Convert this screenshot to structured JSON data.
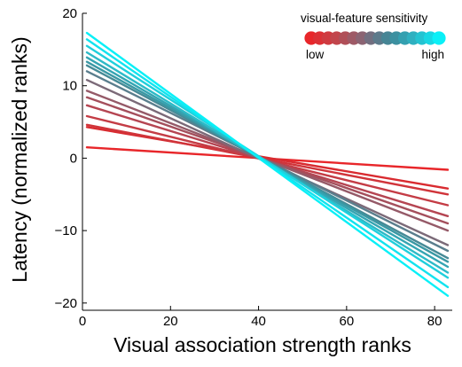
{
  "chart_data": {
    "type": "line",
    "xlabel": "Visual association strength ranks",
    "ylabel": "Latency (normalized ranks)",
    "xlim": [
      0,
      84
    ],
    "ylim": [
      -21,
      20
    ],
    "xticks": [
      0,
      20,
      40,
      60,
      80
    ],
    "yticks": [
      -20,
      -10,
      0,
      10,
      20
    ],
    "x_tick_labels": [
      "0",
      "20",
      "40",
      "60",
      "80"
    ],
    "y_tick_labels": [
      "−20",
      "−10",
      "0",
      "10",
      "20"
    ],
    "grid": false,
    "legend": {
      "title": "visual-feature sensitivity",
      "low_label": "low",
      "high_label": "high",
      "placement": "top-right",
      "swatch_colors": [
        "#e8262a",
        "#dc3035",
        "#cf3a40",
        "#c2454c",
        "#b04f58",
        "#9e5a66",
        "#8b6473",
        "#726f80",
        "#5c7a8b",
        "#468595",
        "#3c90a0",
        "#34a0b0",
        "#2fb0c0",
        "#24c3d1",
        "#18d7e3",
        "#0af0f7"
      ]
    },
    "x_range": [
      1,
      83
    ],
    "series": [
      {
        "color": "#e8262a",
        "values": [
          1.5,
          -1.6
        ]
      },
      {
        "color": "#d92b30",
        "values": [
          4.3,
          -4.2
        ]
      },
      {
        "color": "#d0343a",
        "values": [
          4.6,
          -5.0
        ]
      },
      {
        "color": "#c43c45",
        "values": [
          5.8,
          -6.5
        ]
      },
      {
        "color": "#b54552",
        "values": [
          7.3,
          -8.0
        ]
      },
      {
        "color": "#a44f5c",
        "values": [
          8.4,
          -9.0
        ]
      },
      {
        "color": "#955a68",
        "values": [
          9.3,
          -10.0
        ]
      },
      {
        "color": "#7b6a78",
        "values": [
          10.8,
          -12.0
        ]
      },
      {
        "color": "#5a7e8d",
        "values": [
          12.0,
          -12.8
        ]
      },
      {
        "color": "#468a96",
        "values": [
          12.8,
          -13.8
        ]
      },
      {
        "color": "#3a98a4",
        "values": [
          13.3,
          -14.3
        ]
      },
      {
        "color": "#34a4b2",
        "values": [
          13.9,
          -15.0
        ]
      },
      {
        "color": "#2dbac7",
        "values": [
          14.6,
          -15.8
        ]
      },
      {
        "color": "#1fcfdc",
        "values": [
          15.5,
          -16.5
        ]
      },
      {
        "color": "#12e3ef",
        "values": [
          16.4,
          -17.8
        ]
      },
      {
        "color": "#08f0f7",
        "values": [
          17.3,
          -19.0
        ]
      }
    ]
  }
}
